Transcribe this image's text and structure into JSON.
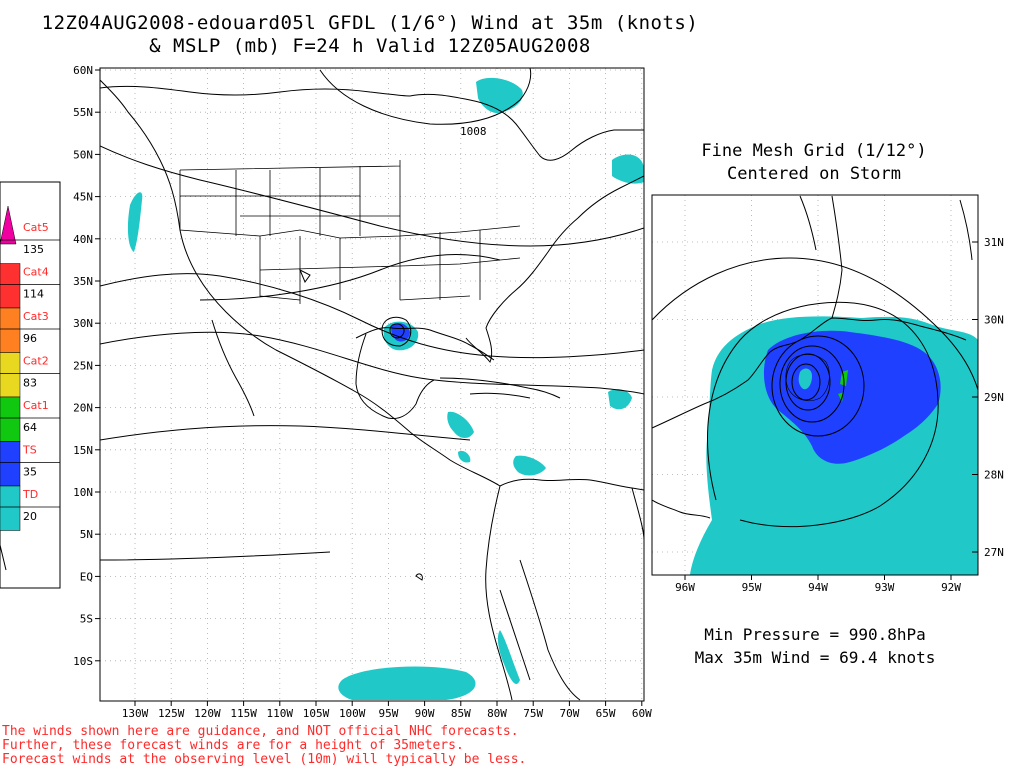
{
  "title": {
    "line1": "12Z04AUG2008-edouard05l GFDL (1/6°) Wind at 35m (knots)",
    "line2": "& MSLP (mb) F=24 h Valid 12Z05AUG2008"
  },
  "main_map": {
    "lat_labels": [
      "60N",
      "55N",
      "50N",
      "45N",
      "40N",
      "35N",
      "30N",
      "25N",
      "20N",
      "15N",
      "10N",
      "5N",
      "EQ",
      "5S",
      "10S"
    ],
    "lon_labels": [
      "130W",
      "125W",
      "120W",
      "115W",
      "110W",
      "105W",
      "100W",
      "95W",
      "90W",
      "85W",
      "80W",
      "75W",
      "70W",
      "65W",
      "60W"
    ],
    "isobar_label": "1008"
  },
  "legend": {
    "categories": [
      {
        "name": "Cat5",
        "value": "135",
        "color": "#f000a0"
      },
      {
        "name": "Cat4",
        "value": "114",
        "color": "#ff3030"
      },
      {
        "name": "Cat3",
        "value": "96",
        "color": "#ff8020"
      },
      {
        "name": "Cat2",
        "value": "83",
        "color": "#e8d820"
      },
      {
        "name": "Cat1",
        "value": "64",
        "color": "#10c810"
      },
      {
        "name": "TS",
        "value": "35",
        "color": "#2040ff"
      },
      {
        "name": "TD",
        "value": "20",
        "color": "#20c8c8"
      }
    ],
    "label_color": "#ff2a2a"
  },
  "fine_mesh": {
    "title_line1": "Fine Mesh Grid (1/12°)",
    "title_line2": "Centered on Storm",
    "lat_labels": [
      "31N",
      "30N",
      "29N",
      "28N",
      "27N"
    ],
    "lon_labels": [
      "96W",
      "95W",
      "94W",
      "93W",
      "92W"
    ]
  },
  "stats": {
    "min_pressure": "Min Pressure = 990.8hPa",
    "max_wind": "Max 35m Wind = 69.4 knots"
  },
  "disclaimer": {
    "line1": "The winds shown here are guidance, and NOT official NHC forecasts.",
    "line2": "Further, these forecast winds are for a height of 35meters.",
    "line3": "Forecast winds at the observing level (10m) will typically be less."
  }
}
